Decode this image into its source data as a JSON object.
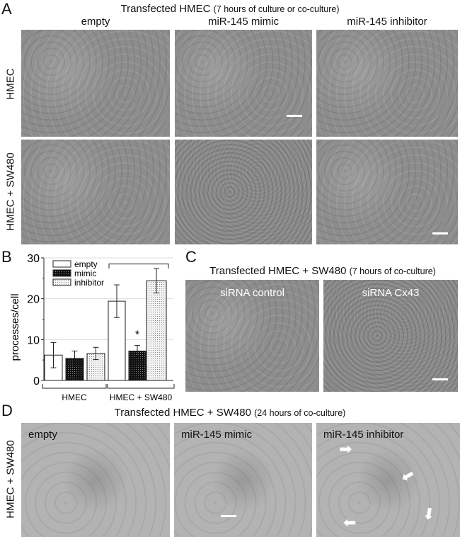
{
  "panelA": {
    "letter": "A",
    "title": "Transfected HMEC",
    "title_note": "(7 hours of culture or co-culture)",
    "columns": [
      "empty",
      "miR-145 mimic",
      "miR-145 inhibitor"
    ],
    "rows": [
      "HMEC",
      "HMEC + SW480"
    ]
  },
  "panelB": {
    "letter": "B"
  },
  "panelC": {
    "letter": "C",
    "title": "Transfected HMEC + SW480",
    "title_note": "(7 hours of co-culture)",
    "images": [
      "siRNA control",
      "siRNA Cx43"
    ]
  },
  "panelD": {
    "letter": "D",
    "title": "Transfected HMEC + SW480",
    "title_note": "(24 hours of co-culture)",
    "row": "HMEC + SW480",
    "images": [
      "empty",
      "miR-145 mimic",
      "miR-145 inhibitor"
    ]
  },
  "chart_data": {
    "type": "bar",
    "ylabel": "processes/cell",
    "ylim": [
      0,
      30
    ],
    "yticks": [
      0,
      10,
      20,
      30
    ],
    "groups": [
      "HMEC",
      "HMEC + SW480"
    ],
    "series": [
      {
        "name": "empty",
        "values": [
          6.2,
          19.4
        ],
        "errors": [
          3.1,
          4.0
        ],
        "fill": "#ffffff"
      },
      {
        "name": "mimic",
        "values": [
          5.4,
          7.2
        ],
        "errors": [
          1.8,
          1.4
        ],
        "fill": "#111111"
      },
      {
        "name": "inhibitor",
        "values": [
          6.6,
          24.4
        ],
        "errors": [
          1.5,
          3.0
        ],
        "fill": "#dddddd"
      }
    ],
    "annotations": [
      "*"
    ],
    "legend": "top-left",
    "grid": true
  }
}
